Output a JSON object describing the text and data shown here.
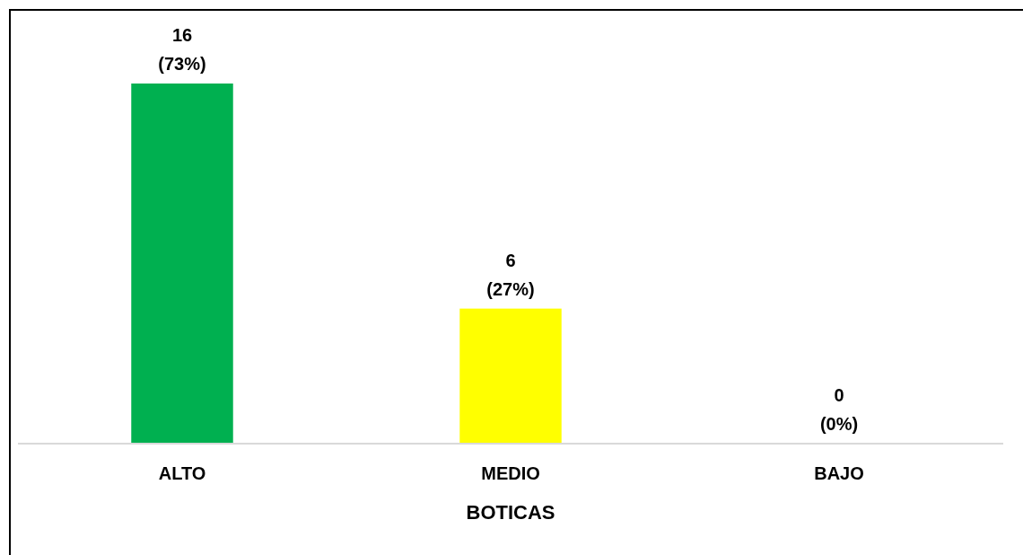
{
  "chart_data": {
    "type": "bar",
    "xlabel": "BOTICAS",
    "categories": [
      "ALTO",
      "MEDIO",
      "BAJO"
    ],
    "values": [
      16,
      6,
      0
    ],
    "colors": [
      "#00b050",
      "#ffff00",
      "#a5a5a5"
    ],
    "value_labels": [
      "16 (73%)",
      "6 (27%)",
      "0 (0%)"
    ],
    "ylim": [
      0,
      16
    ],
    "tick_labels": "x"
  }
}
